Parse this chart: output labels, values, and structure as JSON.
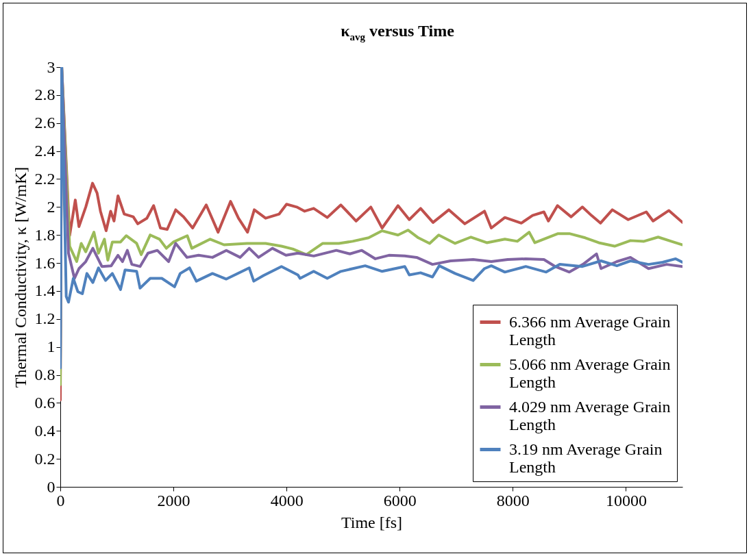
{
  "chart_data": {
    "type": "line",
    "title": "κ$_{avg}$ versus Time",
    "xlabel": "Time [fs]",
    "ylabel": "Thermal Conductivity, κ [W/mK]",
    "xlim": [
      0,
      11000
    ],
    "xticks": [
      0,
      2000,
      4000,
      6000,
      8000,
      10000
    ],
    "ylim": [
      0,
      3
    ],
    "yticks": [
      0,
      0.2,
      0.4,
      0.6,
      0.8,
      1,
      1.2,
      1.4,
      1.6,
      1.8,
      2,
      2.2,
      2.4,
      2.6,
      2.8,
      3
    ],
    "grid": false,
    "legend": "bottom right",
    "marker": "none",
    "line_style": "solid",
    "series": [
      {
        "name": "6.366 nm Average Grain Length",
        "color": "#c0504d",
        "x": [
          0,
          25,
          165,
          265,
          330,
          450,
          570,
          650,
          710,
          810,
          890,
          950,
          1020,
          1130,
          1290,
          1370,
          1530,
          1650,
          1770,
          1890,
          2040,
          2180,
          2340,
          2580,
          2790,
          3010,
          3150,
          3310,
          3430,
          3630,
          3870,
          4000,
          4180,
          4320,
          4480,
          4720,
          4960,
          5230,
          5490,
          5690,
          5970,
          6170,
          6370,
          6590,
          6870,
          7150,
          7500,
          7620,
          7860,
          8150,
          8350,
          8550,
          8630,
          8790,
          9030,
          9230,
          9390,
          9550,
          9760,
          10040,
          10360,
          10480,
          10760,
          11000
        ],
        "values": [
          0.62,
          3,
          1.795,
          2.05,
          1.86,
          2,
          2.17,
          2.1,
          1.97,
          1.83,
          1.97,
          1.9,
          2.08,
          1.95,
          1.93,
          1.88,
          1.92,
          2.01,
          1.85,
          1.84,
          1.98,
          1.93,
          1.85,
          2.015,
          1.82,
          2.04,
          1.92,
          1.82,
          1.98,
          1.92,
          1.95,
          2.02,
          2,
          1.97,
          1.99,
          1.925,
          2.015,
          1.9,
          2,
          1.85,
          2.01,
          1.91,
          1.99,
          1.89,
          1.98,
          1.88,
          1.97,
          1.85,
          1.925,
          1.885,
          1.94,
          1.965,
          1.9,
          2.01,
          1.93,
          2,
          1.94,
          1.885,
          1.98,
          1.91,
          1.965,
          1.9,
          1.975,
          1.89
        ]
      },
      {
        "name": "5.066 nm Average Grain Length",
        "color": "#9bbb59",
        "x": [
          0,
          25,
          165,
          290,
          370,
          450,
          595,
          675,
          780,
          840,
          920,
          1065,
          1165,
          1350,
          1430,
          1590,
          1755,
          1875,
          2000,
          2245,
          2325,
          2650,
          2895,
          3300,
          3630,
          3910,
          4110,
          4350,
          4640,
          4925,
          5170,
          5450,
          5690,
          5970,
          6150,
          6330,
          6530,
          6690,
          6980,
          7260,
          7540,
          7860,
          8080,
          8290,
          8390,
          8800,
          9000,
          9280,
          9520,
          9800,
          10080,
          10320,
          10570,
          10800,
          11000
        ],
        "values": [
          0.73,
          3,
          1.72,
          1.61,
          1.74,
          1.68,
          1.82,
          1.67,
          1.77,
          1.62,
          1.75,
          1.75,
          1.795,
          1.74,
          1.66,
          1.8,
          1.77,
          1.705,
          1.75,
          1.795,
          1.705,
          1.77,
          1.73,
          1.74,
          1.74,
          1.72,
          1.7,
          1.66,
          1.74,
          1.74,
          1.755,
          1.78,
          1.83,
          1.8,
          1.835,
          1.78,
          1.74,
          1.8,
          1.74,
          1.785,
          1.745,
          1.77,
          1.755,
          1.82,
          1.745,
          1.81,
          1.81,
          1.78,
          1.745,
          1.72,
          1.76,
          1.755,
          1.785,
          1.755,
          1.73
        ]
      },
      {
        "name": "4.029 nm Average Grain Length",
        "color": "#8064a2",
        "x": [
          0,
          25,
          145,
          250,
          330,
          450,
          575,
          655,
          735,
          900,
          1020,
          1100,
          1185,
          1265,
          1410,
          1550,
          1715,
          1915,
          2040,
          2240,
          2445,
          2690,
          2935,
          3180,
          3340,
          3505,
          3750,
          3990,
          4200,
          4480,
          4880,
          5120,
          5330,
          5570,
          5810,
          6090,
          6300,
          6580,
          6900,
          7300,
          7620,
          7910,
          8230,
          8550,
          8750,
          9000,
          9240,
          9480,
          9560,
          9840,
          10080,
          10400,
          10720,
          11000
        ],
        "values": [
          0.9,
          3,
          1.67,
          1.49,
          1.56,
          1.61,
          1.705,
          1.64,
          1.575,
          1.58,
          1.655,
          1.61,
          1.69,
          1.59,
          1.575,
          1.67,
          1.69,
          1.61,
          1.74,
          1.64,
          1.655,
          1.64,
          1.69,
          1.64,
          1.705,
          1.64,
          1.705,
          1.655,
          1.67,
          1.65,
          1.69,
          1.665,
          1.69,
          1.63,
          1.655,
          1.65,
          1.64,
          1.59,
          1.615,
          1.625,
          1.61,
          1.625,
          1.63,
          1.625,
          1.575,
          1.535,
          1.59,
          1.665,
          1.56,
          1.61,
          1.64,
          1.56,
          1.59,
          1.575
        ]
      },
      {
        "name": "3.19 nm Average Grain Length",
        "color": "#4f81bd",
        "x": [
          0,
          25,
          105,
          145,
          230,
          310,
          390,
          470,
          575,
          675,
          800,
          920,
          1065,
          1145,
          1350,
          1410,
          1590,
          1795,
          2020,
          2120,
          2285,
          2405,
          2690,
          2935,
          3340,
          3420,
          3590,
          3910,
          4200,
          4240,
          4480,
          4720,
          4960,
          5390,
          5690,
          6090,
          6170,
          6370,
          6580,
          6700,
          6980,
          7300,
          7500,
          7620,
          7860,
          8230,
          8590,
          8830,
          9230,
          9560,
          9840,
          10080,
          10400,
          10650,
          10880,
          11000
        ],
        "values": [
          0.85,
          3,
          1.36,
          1.32,
          1.49,
          1.395,
          1.38,
          1.525,
          1.46,
          1.565,
          1.475,
          1.525,
          1.41,
          1.55,
          1.54,
          1.42,
          1.49,
          1.49,
          1.43,
          1.525,
          1.565,
          1.47,
          1.525,
          1.485,
          1.565,
          1.47,
          1.51,
          1.575,
          1.515,
          1.49,
          1.54,
          1.49,
          1.54,
          1.58,
          1.54,
          1.575,
          1.515,
          1.53,
          1.5,
          1.58,
          1.525,
          1.475,
          1.56,
          1.58,
          1.535,
          1.575,
          1.535,
          1.59,
          1.575,
          1.615,
          1.58,
          1.615,
          1.59,
          1.605,
          1.63,
          1.605
        ]
      }
    ]
  }
}
